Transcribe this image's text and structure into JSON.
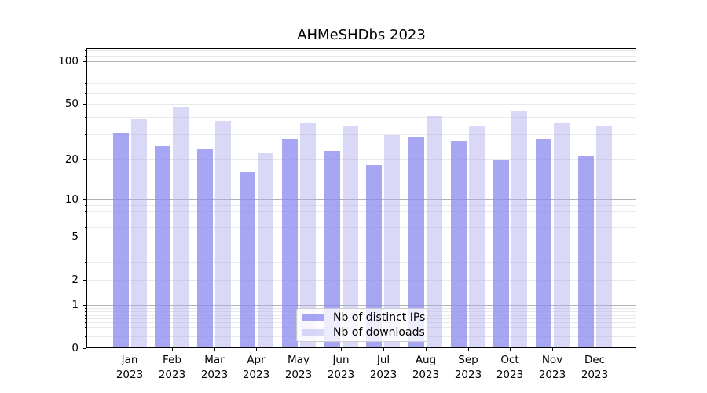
{
  "chart_data": {
    "type": "bar",
    "title": "AHMeSHDbs 2023",
    "categories": [
      "Jan 2023",
      "Feb 2023",
      "Mar 2023",
      "Apr 2023",
      "May 2023",
      "Jun 2023",
      "Jul 2023",
      "Aug 2023",
      "Sep 2023",
      "Oct 2023",
      "Nov 2023",
      "Dec 2023"
    ],
    "series": [
      {
        "name": "Nb of distinct IPs",
        "color": "rgba(136,136,238,0.75)",
        "values": [
          31,
          25,
          24,
          16,
          28,
          23,
          18,
          29,
          27,
          20,
          28,
          21
        ]
      },
      {
        "name": "Nb of downloads",
        "color": "rgba(170,170,238,0.45)",
        "values": [
          39,
          48,
          38,
          22,
          37,
          35,
          30,
          41,
          35,
          45,
          37,
          35
        ]
      }
    ],
    "xlabel": "",
    "ylabel": "",
    "yscale": "log1p",
    "ylim": [
      0,
      125
    ],
    "y_ticks_labeled": [
      0,
      1,
      2,
      5,
      10,
      20,
      50,
      100
    ],
    "y_gridlines_major": [
      1,
      10,
      100
    ],
    "y_gridlines_minor": [
      0.2,
      0.3,
      0.4,
      0.5,
      0.6,
      0.7,
      0.8,
      0.9,
      2,
      3,
      4,
      5,
      6,
      7,
      8,
      9,
      20,
      30,
      40,
      50,
      60,
      70,
      80,
      90,
      110,
      120
    ],
    "grid": true,
    "legend_position": "lower center",
    "colors": {
      "grid_major": "#b2b2b2",
      "grid_minor": "#e9e9e9",
      "spine": "#000000",
      "text": "#000000",
      "legend_bg": "rgba(255,255,255,0.8)",
      "legend_border": "#cccccc"
    }
  }
}
